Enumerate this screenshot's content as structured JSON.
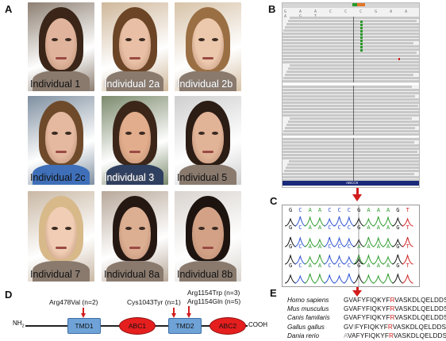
{
  "panels": {
    "a": "A",
    "b": "B",
    "c": "C",
    "d": "D",
    "e": "E"
  },
  "photos": [
    {
      "label": "Individual 1",
      "bg": "#8d7f72",
      "face": "#e0b49c",
      "hair": "#3a2518",
      "light": false
    },
    {
      "label": "Individual 2a",
      "bg": "#cfb79a",
      "face": "#e9c0a5",
      "hair": "#6b4526",
      "light": true
    },
    {
      "label": "Individual 2b",
      "bg": "#d7c3a8",
      "face": "#ecc8ad",
      "hair": "#9a6f43",
      "light": true
    },
    {
      "label": "Individual 2c",
      "bg": "#7f8fa0",
      "face": "#e4b9a0",
      "hair": "#6e4a2b",
      "light": false
    },
    {
      "label": "Individual 3",
      "bg": "#7b8a6c",
      "face": "#e2ad8c",
      "hair": "#3b2619",
      "light": true
    },
    {
      "label": "Individual 5",
      "bg": "#cfcfcf",
      "face": "#e1b397",
      "hair": "#2b1c14",
      "light": false
    },
    {
      "label": "Individual 7",
      "bg": "#c9b8a4",
      "face": "#f0cdb4",
      "hair": "#d8b98a",
      "light": false
    },
    {
      "label": "Individual 8a",
      "bg": "#b8a89a",
      "face": "#dcae92",
      "hair": "#251812",
      "light": false
    },
    {
      "label": "Individual 8b",
      "bg": "#d9d4cf",
      "face": "#d3a286",
      "hair": "#1d1410",
      "light": false
    }
  ],
  "igv": {
    "ref_bases": "G A A C C C G A A A G T",
    "gene_label": "ABCC9"
  },
  "chromatogram": {
    "rows": [
      [
        "G",
        "C",
        "A",
        "A",
        "C",
        "C",
        "C",
        "G",
        "A",
        "A",
        "A",
        "G",
        "T"
      ],
      [
        "G",
        "C",
        "A",
        "A",
        "C",
        "C",
        "C",
        "G",
        "A",
        "A",
        "A",
        "G",
        "T"
      ],
      [
        "G",
        "C",
        "A",
        "A",
        "C",
        "C",
        "C",
        "A",
        "A",
        "A",
        "A",
        "G",
        "T"
      ],
      [
        "G",
        "C",
        "A",
        "A",
        "C",
        "C",
        "C",
        "G",
        "A",
        "A",
        "A",
        "G",
        "T"
      ]
    ]
  },
  "protein": {
    "n_term": "NH",
    "n_term_sub": "2",
    "c_term": "COOH",
    "domains": [
      "TMD1",
      "ABC1",
      "TMD2",
      "ABC2"
    ],
    "mutations": [
      "Arg478Val (n=2)",
      "Cys1043Tyr (n=1)",
      "Arg1154Trp (n=3)",
      "Arg1154Gln (n=5)"
    ]
  },
  "alignment": [
    {
      "species": "Homo sapiens",
      "seq": "GVAFYFIQKYFRVASKDLQELDDSTQ"
    },
    {
      "species": "Mus musculus",
      "seq": "GVAFYFIQKYFRVASKDLQELDDSTQ"
    },
    {
      "species": "Canis familaris",
      "seq": "GVAFYFIQKYFRVASKDLQELDDSTQ"
    },
    {
      "species": "Gallus gallus",
      "seq": "GVIFYFIQKYFRVASKDLQELDDSTL"
    },
    {
      "species": "Dania rerio",
      "seq": "AVAFYFIQKYFRVASKDLQELDDSTQ"
    }
  ],
  "colors": {
    "arrow": "#d21d1d",
    "highlight_R": "#d21d1d",
    "mismatch": "#a0a0a0",
    "trace_A": "#2a9a2a",
    "trace_C": "#2a4fd0",
    "trace_G": "#111111",
    "trace_T": "#d02020"
  }
}
